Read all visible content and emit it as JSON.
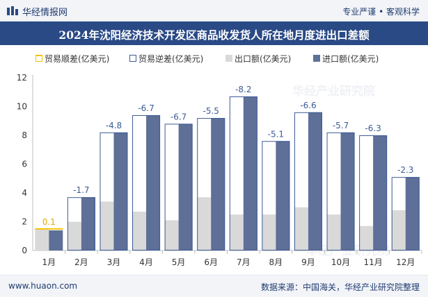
{
  "header": {
    "brand": "华经情报网",
    "slogan": "专业严谨 • 客观科学",
    "title": "2024年沈阳经济技术开发区商品收发货人所在地月度进出口差额"
  },
  "footer": {
    "url": "www.huaon.com",
    "source": "数据来源：中国海关，华经产业研究院整理"
  },
  "watermark": "华经产业研究院",
  "colors": {
    "surplus": "#f5c200",
    "deficit_border": "#3d5a95",
    "export": "#d9d9d9",
    "import": "#5e6f98",
    "title_bg": "#2a4a86",
    "label_text": "#3d5a95"
  },
  "chart_data": {
    "type": "bar",
    "title": "2024年沈阳经济技术开发区商品收发货人所在地月度进出口差额",
    "categories": [
      "1月",
      "2月",
      "3月",
      "4月",
      "5月",
      "6月",
      "7月",
      "8月",
      "9月",
      "10月",
      "11月",
      "12月"
    ],
    "unit": "亿美元",
    "ylim": [
      0,
      12
    ],
    "yticks": [
      0,
      2,
      4,
      6,
      8,
      10,
      12
    ],
    "grid": false,
    "legend_position": "top",
    "legend": [
      "贸易顺差(亿美元)",
      "贸易逆差(亿美元)",
      "出口额(亿美元)",
      "进口额(亿美元)"
    ],
    "series": [
      {
        "name": "出口额(亿美元)",
        "values": [
          1.5,
          2.0,
          3.4,
          2.7,
          2.1,
          3.7,
          2.5,
          2.5,
          3.0,
          2.5,
          1.7,
          2.8
        ]
      },
      {
        "name": "进口额(亿美元)",
        "values": [
          1.4,
          3.7,
          8.2,
          9.4,
          8.8,
          9.2,
          10.7,
          7.6,
          9.6,
          8.2,
          8.0,
          5.1
        ]
      }
    ],
    "balance": [
      0.1,
      -1.7,
      -4.8,
      -6.7,
      -6.7,
      -5.5,
      -8.2,
      -5.1,
      -6.6,
      -5.7,
      -6.3,
      -2.3
    ],
    "balance_labels": [
      "0.1",
      "-1.7",
      "-4.8",
      "-6.7",
      "-6.7",
      "-5.5",
      "-8.2",
      "-5.1",
      "-6.6",
      "-5.7",
      "-6.3",
      "-2.3"
    ]
  }
}
